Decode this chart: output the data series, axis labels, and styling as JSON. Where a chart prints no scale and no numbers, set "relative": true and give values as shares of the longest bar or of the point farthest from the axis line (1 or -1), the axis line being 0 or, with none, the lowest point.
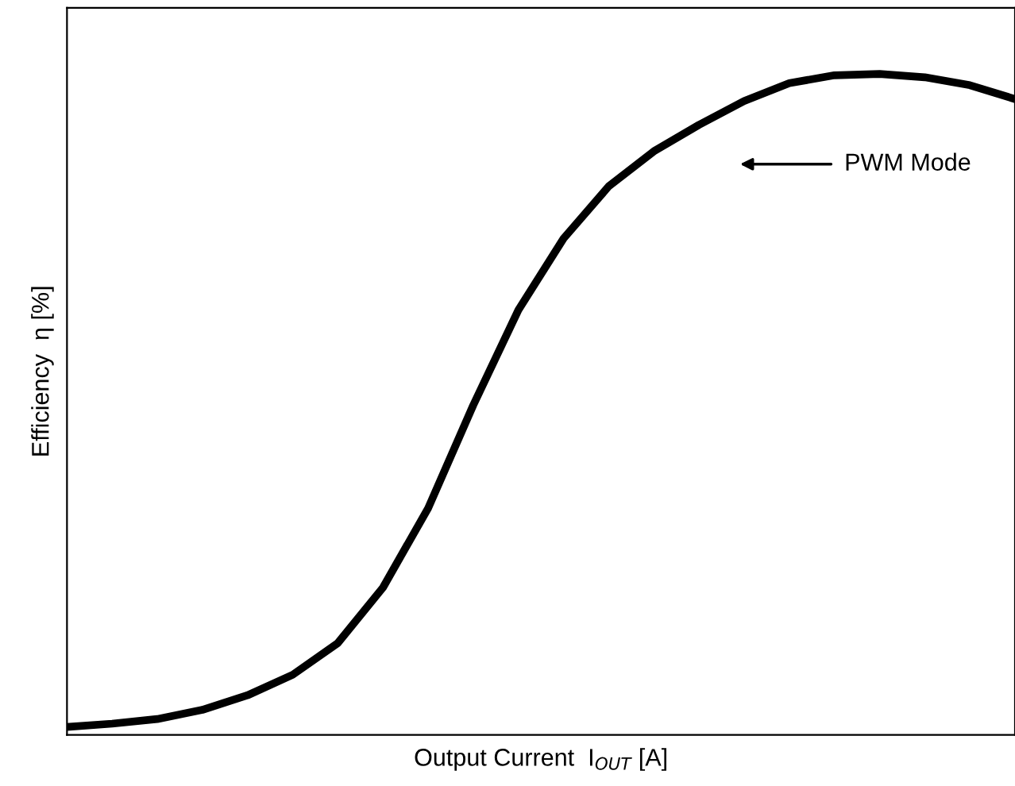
{
  "chart_data": {
    "type": "line",
    "relative": true,
    "xlabel": "Output Current  I$_{OUT}$ [A]",
    "ylabel": "Efficiency  η [%]",
    "categories": [
      null,
      null,
      null,
      null,
      null,
      null,
      null,
      null,
      null,
      null,
      null,
      null,
      null,
      null,
      null,
      null,
      null,
      null,
      null,
      null,
      null,
      null
    ],
    "series": [
      {
        "color": "#000000",
        "values": [
          0.012,
          0.017,
          0.024,
          0.038,
          0.06,
          0.091,
          0.139,
          0.223,
          0.343,
          0.499,
          0.643,
          0.751,
          0.83,
          0.883,
          0.923,
          0.959,
          0.986,
          0.998,
          1.0,
          0.995,
          0.983,
          0.962
        ]
      }
    ],
    "annotations": [
      "PWM Mode"
    ],
    "grid": false,
    "legend": false,
    "marker": "none",
    "line_style": "solid",
    "tick_labels": false
  }
}
